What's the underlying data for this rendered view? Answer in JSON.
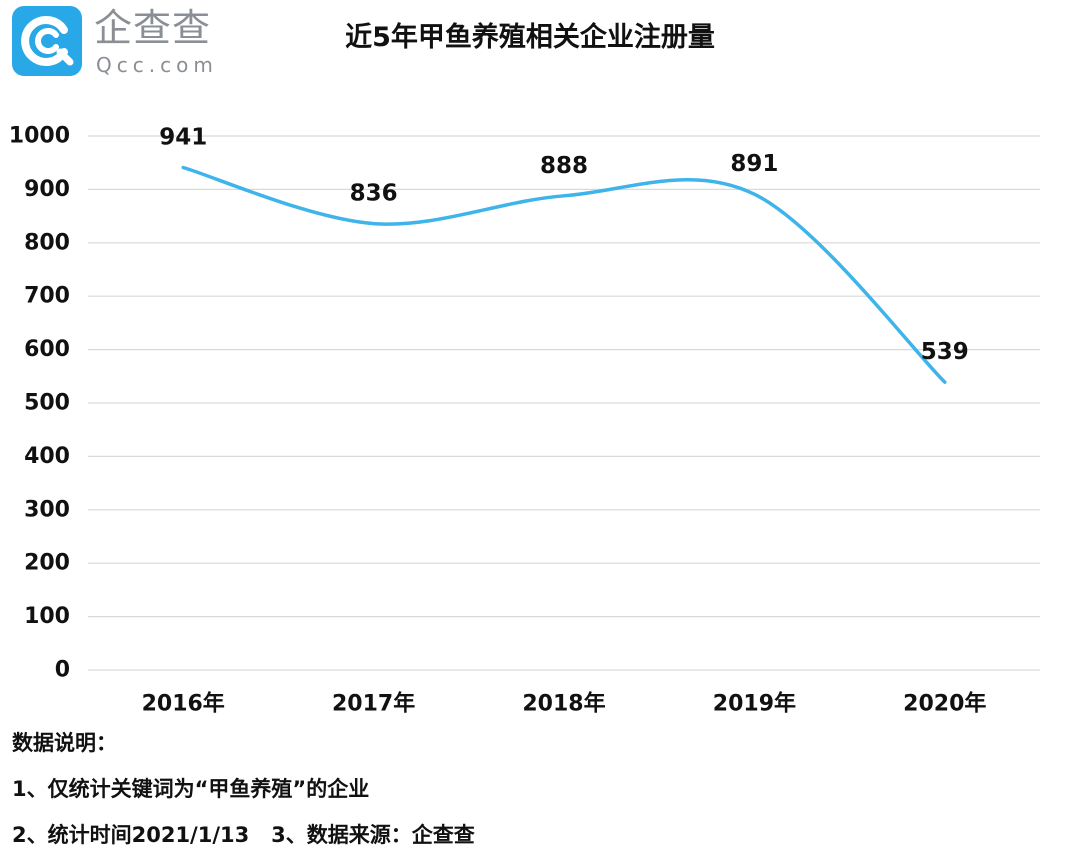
{
  "brand": {
    "name": "企查查",
    "domain": "Qcc.com",
    "icon": "qcc-logo-icon",
    "color": "#29a8e8"
  },
  "chart_data": {
    "type": "line",
    "title": "近5年甲鱼养殖相关企业注册量",
    "categories": [
      "2016年",
      "2017年",
      "2018年",
      "2019年",
      "2020年"
    ],
    "values": [
      941,
      836,
      888,
      891,
      539
    ],
    "data_labels": [
      "941",
      "836",
      "888",
      "891",
      "539"
    ],
    "ylim": [
      0,
      1000
    ],
    "yticks": [
      "0",
      "100",
      "200",
      "300",
      "400",
      "500",
      "600",
      "700",
      "800",
      "900",
      "1000"
    ],
    "line_color": "#3eb4ea",
    "grid": true,
    "smooth": true
  },
  "notes": {
    "heading": "数据说明：",
    "line1": "1、仅统计关键词为“甲鱼养殖”的企业",
    "line2_a": "2、统计时间2021/1/13",
    "line2_b": "   3、数据来源：企查查"
  }
}
